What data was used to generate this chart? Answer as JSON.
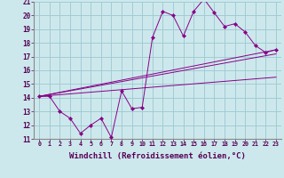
{
  "bg_color": "#cde8ec",
  "grid_color": "#a0ccd4",
  "line_color": "#880088",
  "xlim": [
    -0.5,
    23.5
  ],
  "ylim": [
    11,
    21
  ],
  "xlabel": "Windchill (Refroidissement éolien,°C)",
  "xtick_vals": [
    0,
    1,
    2,
    3,
    4,
    5,
    6,
    7,
    8,
    9,
    10,
    11,
    12,
    13,
    14,
    15,
    16,
    17,
    18,
    19,
    20,
    21,
    22,
    23
  ],
  "xtick_labels": [
    "0",
    "1",
    "2",
    "3",
    "4",
    "5",
    "6",
    "7",
    "8",
    "9",
    "10",
    "11",
    "12",
    "13",
    "14",
    "15",
    "16",
    "17",
    "18",
    "19",
    "20",
    "21",
    "22",
    "23"
  ],
  "ytick_vals": [
    11,
    12,
    13,
    14,
    15,
    16,
    17,
    18,
    19,
    20,
    21
  ],
  "ytick_labels": [
    "11",
    "12",
    "13",
    "14",
    "15",
    "16",
    "17",
    "18",
    "19",
    "20",
    "21"
  ],
  "main_series": {
    "x": [
      0,
      1,
      2,
      3,
      4,
      5,
      6,
      7,
      8,
      9,
      10,
      11,
      12,
      13,
      14,
      15,
      16,
      17,
      18,
      19,
      20,
      21,
      22,
      23
    ],
    "y": [
      14.1,
      14.1,
      13.0,
      12.5,
      11.4,
      12.0,
      12.5,
      11.1,
      14.5,
      13.2,
      13.3,
      18.4,
      20.3,
      20.0,
      18.5,
      20.3,
      21.2,
      20.2,
      19.2,
      19.4,
      18.8,
      17.8,
      17.3,
      17.5
    ]
  },
  "straight_lines": [
    {
      "x": [
        0,
        23
      ],
      "y": [
        14.1,
        17.5
      ]
    },
    {
      "x": [
        0,
        23
      ],
      "y": [
        14.1,
        17.2
      ]
    },
    {
      "x": [
        0,
        23
      ],
      "y": [
        14.1,
        15.5
      ]
    }
  ]
}
